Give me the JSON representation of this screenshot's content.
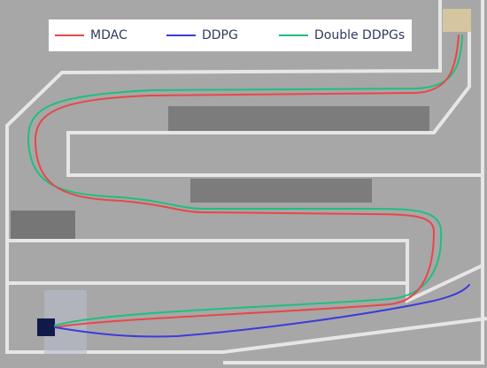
{
  "legend": {
    "items": [
      {
        "label": "MDAC",
        "color": "#e8474a"
      },
      {
        "label": "DDPG",
        "color": "#3b3bdc"
      },
      {
        "label": "Double DDPGs",
        "color": "#1fbf7f"
      }
    ]
  }
}
